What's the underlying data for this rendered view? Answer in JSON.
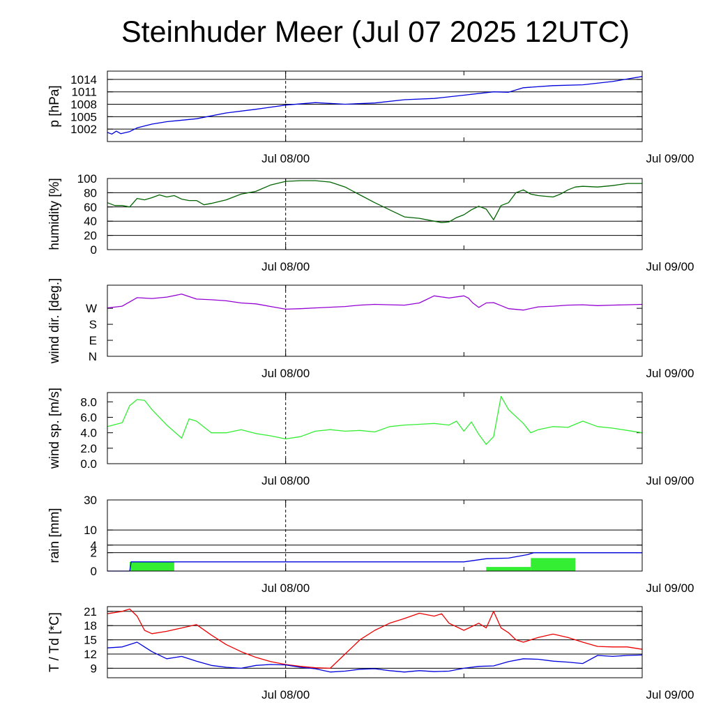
{
  "chart_data": {
    "title": "Steinhuder Meer (Jul 07 2025 12UTC)",
    "x_range": [
      "Jul 07 12:00",
      "Jul 09 00:00"
    ],
    "x_tick_labels": [
      "Jul 08/00",
      "Jul 09/00"
    ],
    "x_tick_hours": [
      12,
      36
    ],
    "panels": [
      {
        "type": "line",
        "ylabel": "p [hPa]",
        "ylim": [
          999,
          1016
        ],
        "ticks": [
          1002,
          1005,
          1008,
          1011,
          1014
        ],
        "tick_labels": [
          "1002",
          "1005",
          "1008",
          "1011",
          "1014"
        ],
        "grid": true,
        "series": [
          {
            "color": "#0000dd",
            "x": [
              0,
              0.3,
              0.6,
              0.9,
              1.5,
              2,
              3,
              4,
              6,
              8,
              10,
              12,
              14,
              16,
              18,
              20,
              22,
              24,
              26,
              27,
              28,
              30,
              32,
              34,
              36
            ],
            "y": [
              1001.2,
              1000.8,
              1001.5,
              1000.9,
              1001.4,
              1002.3,
              1003.2,
              1003.8,
              1004.5,
              1005.9,
              1006.8,
              1007.8,
              1008.4,
              1008.0,
              1008.3,
              1009.1,
              1009.4,
              1010.2,
              1011.0,
              1010.9,
              1012.0,
              1012.5,
              1012.7,
              1013.5,
              1014.7
            ]
          }
        ]
      },
      {
        "type": "line",
        "ylabel": "humidity [%]",
        "ylim": [
          0,
          100
        ],
        "ticks": [
          0,
          20,
          40,
          60,
          80,
          100
        ],
        "tick_labels": [
          "0",
          "20",
          "40",
          "60",
          "80",
          "100"
        ],
        "grid": true,
        "series": [
          {
            "color": "#006400",
            "x": [
              0,
              0.5,
              1,
              1.5,
              2,
              2.5,
              3,
              3.5,
              4,
              4.5,
              5,
              5.5,
              6,
              6.5,
              7,
              8,
              9,
              10,
              11,
              12,
              13,
              14,
              15,
              16,
              17,
              18,
              19,
              20,
              21,
              22,
              22.5,
              23,
              23.5,
              24,
              24.5,
              25,
              25.5,
              26,
              26.5,
              27,
              27.5,
              28,
              28.5,
              29,
              29.5,
              30,
              30.5,
              31,
              31.5,
              32,
              33,
              34,
              35,
              36
            ],
            "y": [
              66,
              62,
              62,
              60,
              72,
              70,
              73,
              77,
              74,
              76,
              71,
              69,
              69,
              63,
              65,
              70,
              78,
              82,
              91,
              96,
              97,
              97,
              95,
              88,
              77,
              66,
              56,
              46,
              44,
              40,
              38,
              39,
              45,
              49,
              56,
              61,
              57,
              42,
              62,
              66,
              80,
              84,
              78,
              76,
              75,
              74,
              78,
              84,
              88,
              89,
              88,
              90,
              93,
              93
            ]
          }
        ]
      },
      {
        "type": "line",
        "ylabel": "wind dir. [deg.]",
        "ylim": [
          0,
          400
        ],
        "ticks": [
          0,
          90,
          180,
          270
        ],
        "tick_labels": [
          "N",
          "E",
          "S",
          "W"
        ],
        "grid": false,
        "series": [
          {
            "color": "#9400d3",
            "x": [
              0,
              1,
              2,
              3,
              4,
              5,
              6,
              7,
              8,
              9,
              10,
              11,
              12,
              13,
              14,
              15,
              16,
              17,
              18,
              19,
              20,
              21,
              22,
              23,
              24,
              24.3,
              24.6,
              25,
              25.5,
              26,
              26.5,
              27,
              28,
              29,
              30,
              31,
              32,
              33,
              34,
              35,
              36
            ],
            "y": [
              272,
              282,
              330,
              325,
              333,
              350,
              322,
              318,
              312,
              300,
              295,
              280,
              265,
              268,
              272,
              276,
              280,
              288,
              292,
              290,
              288,
              300,
              340,
              328,
              340,
              328,
              300,
              275,
              300,
              302,
              285,
              268,
              260,
              278,
              282,
              288,
              290,
              285,
              288,
              290,
              292
            ]
          }
        ]
      },
      {
        "type": "line",
        "ylabel": "wind sp. [m/s]",
        "ylim": [
          0,
          9.2
        ],
        "ticks": [
          0,
          2,
          4,
          6,
          8
        ],
        "tick_labels": [
          "0.0",
          "2.0",
          "4.0",
          "6.0",
          "8.0"
        ],
        "grid": false,
        "series": [
          {
            "color": "#33ee33",
            "x": [
              0,
              1,
              1.5,
              2,
              2.5,
              3,
              4,
              5,
              5.5,
              6,
              7,
              8,
              9,
              10,
              11,
              12,
              13,
              14,
              15,
              16,
              17,
              18,
              19,
              20,
              21,
              22,
              23,
              23.5,
              24,
              24.5,
              25,
              25.5,
              26,
              26.5,
              27,
              28,
              28.5,
              29,
              30,
              31,
              32,
              33,
              34,
              35,
              36
            ],
            "y": [
              4.8,
              5.3,
              7.5,
              8.3,
              8.2,
              7.0,
              5.0,
              3.3,
              5.8,
              5.5,
              4.0,
              4.0,
              4.4,
              3.9,
              3.6,
              3.2,
              3.5,
              4.2,
              4.4,
              4.2,
              4.3,
              4.1,
              4.8,
              5.0,
              5.1,
              5.2,
              5.0,
              5.5,
              4.2,
              5.4,
              3.8,
              2.5,
              3.5,
              8.7,
              7.0,
              5.2,
              4.0,
              4.4,
              4.8,
              4.7,
              5.5,
              4.8,
              4.6,
              4.3,
              4.0
            ]
          }
        ]
      },
      {
        "type": "bar+line",
        "ylabel": "rain [mm]",
        "scale": "sqrt",
        "ylim": [
          0,
          30
        ],
        "ticks": [
          0,
          2,
          4,
          10,
          30
        ],
        "tick_labels": [
          "0",
          "2",
          "4",
          "10",
          "30"
        ],
        "grid": true,
        "bars": {
          "color": "#33ee33",
          "items": [
            {
              "from": 1.5,
              "to": 4.5,
              "value": 0.5
            },
            {
              "from": 25.5,
              "to": 28.5,
              "value": 0.1
            },
            {
              "from": 28.5,
              "to": 31.5,
              "value": 1.0
            }
          ]
        },
        "series": [
          {
            "color": "#0000dd",
            "x": [
              0,
              1.5,
              1.6,
              24,
              25.5,
              27,
              28.3,
              28.7,
              36
            ],
            "y": [
              0,
              0,
              0.5,
              0.5,
              0.9,
              1.0,
              1.6,
              2.0,
              2.0
            ]
          }
        ]
      },
      {
        "type": "line",
        "ylabel": "T / Td [*C]",
        "ylim": [
          7,
          22
        ],
        "ticks": [
          9,
          12,
          15,
          18,
          21
        ],
        "tick_labels": [
          "9",
          "12",
          "15",
          "18",
          "21"
        ],
        "grid": true,
        "series": [
          {
            "color": "#ee0000",
            "x": [
              0,
              1,
              1.5,
              2,
              2.5,
              3,
              4,
              5,
              6,
              7,
              8,
              9,
              10,
              11,
              12,
              13,
              14,
              15,
              16,
              17,
              18,
              19,
              20,
              21,
              22,
              22.5,
              23,
              24,
              25,
              25.5,
              26,
              26.5,
              27,
              27.5,
              28,
              29,
              30,
              31,
              32,
              33,
              34,
              35,
              36
            ],
            "y": [
              20.5,
              21.0,
              21.5,
              20.0,
              17.0,
              16.3,
              16.8,
              17.5,
              18.2,
              16.0,
              14.0,
              12.5,
              11.3,
              10.4,
              9.8,
              9.4,
              9.1,
              9.0,
              12.0,
              15.0,
              17.0,
              18.5,
              19.5,
              20.6,
              20.0,
              20.5,
              18.5,
              17.0,
              18.5,
              17.5,
              21.0,
              17.5,
              16.5,
              15.0,
              14.5,
              15.5,
              16.2,
              15.5,
              14.5,
              13.6,
              13.5,
              13.5,
              13.0
            ]
          },
          {
            "color": "#0000dd",
            "x": [
              0,
              1,
              2,
              2.5,
              3,
              4,
              5,
              6,
              7,
              8,
              9,
              10,
              11,
              12,
              13,
              14,
              15,
              16,
              17,
              18,
              19,
              20,
              21,
              22,
              23,
              24,
              25,
              26,
              27,
              28,
              29,
              30,
              31,
              32,
              33,
              34,
              35,
              36
            ],
            "y": [
              13.3,
              13.5,
              14.5,
              13.5,
              12.5,
              11.0,
              11.5,
              10.5,
              9.6,
              9.2,
              9.0,
              9.6,
              9.8,
              9.7,
              9.2,
              8.9,
              8.2,
              8.4,
              8.8,
              8.9,
              8.5,
              8.2,
              8.5,
              8.3,
              8.4,
              9.0,
              9.4,
              9.5,
              10.4,
              11.0,
              10.9,
              10.5,
              10.3,
              10.0,
              11.7,
              11.5,
              11.7,
              11.8
            ]
          }
        ]
      }
    ]
  }
}
